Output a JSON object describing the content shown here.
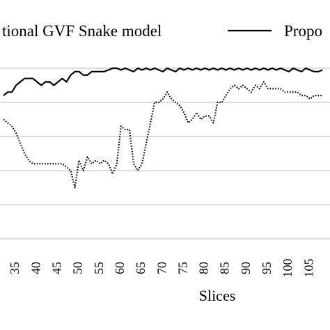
{
  "chart_data": {
    "type": "line",
    "title": "",
    "xlabel": "Slices",
    "ylabel": "",
    "grid": true,
    "legend": "top",
    "x_ticks": [
      "35",
      "40",
      "45",
      "50",
      "55",
      "60",
      "65",
      "70",
      "75",
      "80",
      "85",
      "90",
      "95",
      "100",
      "105"
    ],
    "x_range": [
      32,
      108
    ],
    "series": [
      {
        "name": "Traditional GVF Snake model",
        "legend_label": "tional GVF Snake model",
        "style": "dotted",
        "color": "#000000",
        "points": [
          [
            32,
            0.85
          ],
          [
            33,
            0.84
          ],
          [
            34,
            0.83
          ],
          [
            35,
            0.81
          ],
          [
            36,
            0.78
          ],
          [
            37,
            0.75
          ],
          [
            38,
            0.73
          ],
          [
            39,
            0.72
          ],
          [
            40,
            0.72
          ],
          [
            41,
            0.72
          ],
          [
            42,
            0.72
          ],
          [
            43,
            0.72
          ],
          [
            44,
            0.72
          ],
          [
            45,
            0.72
          ],
          [
            46,
            0.72
          ],
          [
            47,
            0.71
          ],
          [
            48,
            0.7
          ],
          [
            49,
            0.65
          ],
          [
            50,
            0.73
          ],
          [
            51,
            0.7
          ],
          [
            52,
            0.74
          ],
          [
            53,
            0.72
          ],
          [
            54,
            0.73
          ],
          [
            55,
            0.72
          ],
          [
            56,
            0.73
          ],
          [
            57,
            0.72
          ],
          [
            58,
            0.69
          ],
          [
            59,
            0.72
          ],
          [
            60,
            0.83
          ],
          [
            61,
            0.82
          ],
          [
            62,
            0.82
          ],
          [
            63,
            0.72
          ],
          [
            64,
            0.7
          ],
          [
            65,
            0.72
          ],
          [
            66,
            0.78
          ],
          [
            67,
            0.84
          ],
          [
            68,
            0.9
          ],
          [
            69,
            0.9
          ],
          [
            70,
            0.91
          ],
          [
            71,
            0.93
          ],
          [
            72,
            0.91
          ],
          [
            73,
            0.9
          ],
          [
            74,
            0.89
          ],
          [
            75,
            0.87
          ],
          [
            76,
            0.84
          ],
          [
            77,
            0.85
          ],
          [
            78,
            0.87
          ],
          [
            79,
            0.85
          ],
          [
            80,
            0.86
          ],
          [
            81,
            0.86
          ],
          [
            82,
            0.84
          ],
          [
            83,
            0.9
          ],
          [
            84,
            0.9
          ],
          [
            85,
            0.92
          ],
          [
            86,
            0.94
          ],
          [
            87,
            0.95
          ],
          [
            88,
            0.94
          ],
          [
            89,
            0.95
          ],
          [
            90,
            0.94
          ],
          [
            91,
            0.93
          ],
          [
            92,
            0.95
          ],
          [
            93,
            0.94
          ],
          [
            94,
            0.96
          ],
          [
            95,
            0.94
          ],
          [
            96,
            0.94
          ],
          [
            97,
            0.94
          ],
          [
            98,
            0.94
          ],
          [
            99,
            0.93
          ],
          [
            100,
            0.93
          ],
          [
            101,
            0.93
          ],
          [
            102,
            0.93
          ],
          [
            103,
            0.92
          ],
          [
            104,
            0.92
          ],
          [
            105,
            0.91
          ],
          [
            106,
            0.92
          ],
          [
            107,
            0.92
          ],
          [
            108,
            0.92
          ]
        ]
      },
      {
        "name": "Proposed",
        "legend_label": "Propo",
        "style": "solid",
        "color": "#000000",
        "points": [
          [
            32,
            0.92
          ],
          [
            33,
            0.93
          ],
          [
            34,
            0.93
          ],
          [
            35,
            0.95
          ],
          [
            36,
            0.96
          ],
          [
            37,
            0.97
          ],
          [
            38,
            0.97
          ],
          [
            39,
            0.97
          ],
          [
            40,
            0.96
          ],
          [
            41,
            0.95
          ],
          [
            42,
            0.96
          ],
          [
            43,
            0.96
          ],
          [
            44,
            0.95
          ],
          [
            45,
            0.96
          ],
          [
            46,
            0.97
          ],
          [
            47,
            0.96
          ],
          [
            48,
            0.98
          ],
          [
            49,
            0.99
          ],
          [
            50,
            0.99
          ],
          [
            51,
            0.98
          ],
          [
            52,
            0.98
          ],
          [
            53,
            0.99
          ],
          [
            54,
            0.99
          ],
          [
            55,
            0.99
          ],
          [
            56,
            0.99
          ],
          [
            57,
            0.995
          ],
          [
            58,
            1.0
          ],
          [
            59,
            1.0
          ],
          [
            60,
            0.995
          ],
          [
            61,
            1.0
          ],
          [
            62,
            0.995
          ],
          [
            63,
            0.99
          ],
          [
            64,
            1.0
          ],
          [
            65,
            0.995
          ],
          [
            66,
            1.0
          ],
          [
            67,
            0.995
          ],
          [
            68,
            1.0
          ],
          [
            69,
            0.995
          ],
          [
            70,
            0.99
          ],
          [
            71,
            1.0
          ],
          [
            72,
            0.995
          ],
          [
            73,
            0.99
          ],
          [
            74,
            1.0
          ],
          [
            75,
            0.995
          ],
          [
            76,
            1.0
          ],
          [
            77,
            0.995
          ],
          [
            78,
            1.0
          ],
          [
            79,
            0.995
          ],
          [
            80,
            1.0
          ],
          [
            81,
            0.995
          ],
          [
            82,
            1.0
          ],
          [
            83,
            0.995
          ],
          [
            84,
            1.0
          ],
          [
            85,
            0.995
          ],
          [
            86,
            1.0
          ],
          [
            87,
            0.995
          ],
          [
            88,
            1.0
          ],
          [
            89,
            0.995
          ],
          [
            90,
            1.0
          ],
          [
            91,
            0.995
          ],
          [
            92,
            1.0
          ],
          [
            93,
            0.995
          ],
          [
            94,
            1.0
          ],
          [
            95,
            0.995
          ],
          [
            96,
            1.0
          ],
          [
            97,
            0.995
          ],
          [
            98,
            1.0
          ],
          [
            99,
            0.995
          ],
          [
            100,
            0.99
          ],
          [
            101,
            1.0
          ],
          [
            102,
            0.995
          ],
          [
            103,
            0.99
          ],
          [
            104,
            1.0
          ],
          [
            105,
            0.995
          ],
          [
            106,
            0.99
          ],
          [
            107,
            0.99
          ],
          [
            108,
            0.995
          ]
        ]
      }
    ],
    "gridlines_y": [
      1.0,
      0.9,
      0.8,
      0.7,
      0.6,
      0.5
    ]
  }
}
